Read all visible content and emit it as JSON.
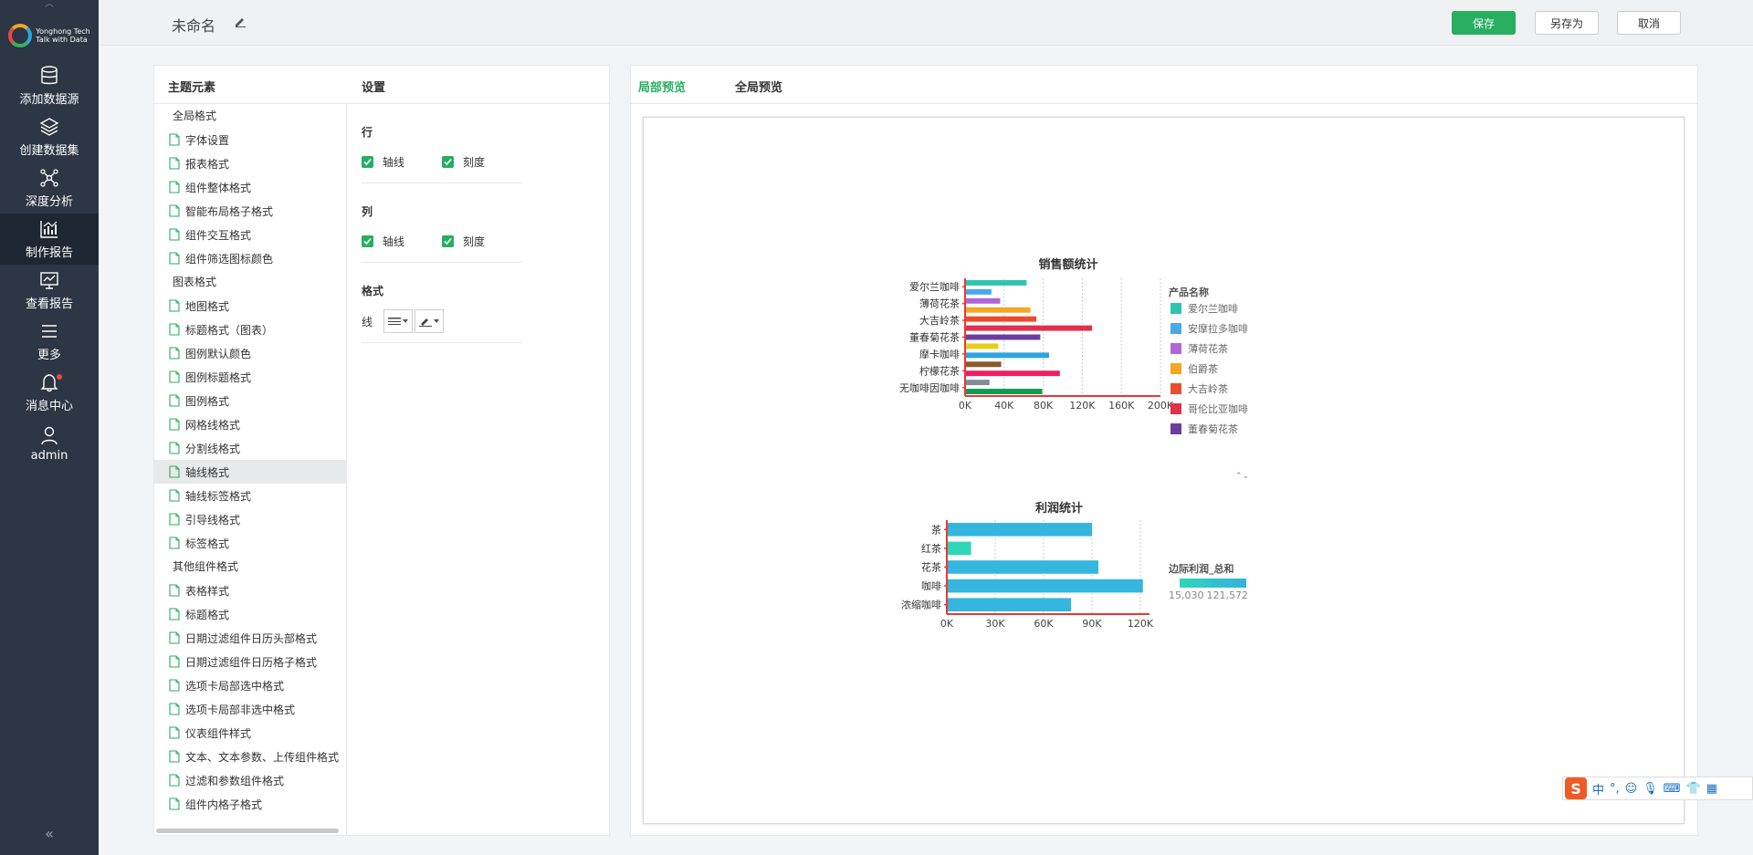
{
  "app": {
    "logo_line1": "Yonghong Tech",
    "logo_line2": "Talk with Data"
  },
  "nav": {
    "items": [
      {
        "label": "添加数据源",
        "icon": "database-icon"
      },
      {
        "label": "创建数据集",
        "icon": "layers-icon"
      },
      {
        "label": "深度分析",
        "icon": "network-icon"
      },
      {
        "label": "制作报告",
        "icon": "chart-icon",
        "active": true
      },
      {
        "label": "查看报告",
        "icon": "monitor-chart-icon"
      },
      {
        "label": "更多",
        "icon": "menu-icon"
      },
      {
        "label": "消息中心",
        "icon": "bell-icon"
      },
      {
        "label": "admin",
        "icon": "user-icon"
      }
    ],
    "collapse": "«"
  },
  "topbar": {
    "title": "未命名",
    "save": "保存",
    "save_as": "另存为",
    "cancel": "取消"
  },
  "panel": {
    "theme_header": "主题元素",
    "settings_header": "设置",
    "tree": [
      {
        "type": "group",
        "label": "全局格式"
      },
      {
        "type": "item",
        "label": "字体设置"
      },
      {
        "type": "item",
        "label": "报表格式"
      },
      {
        "type": "item",
        "label": "组件整体格式"
      },
      {
        "type": "item",
        "label": "智能布局格子格式"
      },
      {
        "type": "item",
        "label": "组件交互格式"
      },
      {
        "type": "item",
        "label": "组件筛选图标颜色"
      },
      {
        "type": "group",
        "label": "图表格式"
      },
      {
        "type": "item",
        "label": "地图格式"
      },
      {
        "type": "item",
        "label": "标题格式（图表）"
      },
      {
        "type": "item",
        "label": "图例默认颜色"
      },
      {
        "type": "item",
        "label": "图例标题格式"
      },
      {
        "type": "item",
        "label": "图例格式"
      },
      {
        "type": "item",
        "label": "网格线格式"
      },
      {
        "type": "item",
        "label": "分割线格式"
      },
      {
        "type": "item",
        "label": "轴线格式",
        "selected": true
      },
      {
        "type": "item",
        "label": "轴线标签格式"
      },
      {
        "type": "item",
        "label": "引导线格式"
      },
      {
        "type": "item",
        "label": "标签格式"
      },
      {
        "type": "group",
        "label": "其他组件格式"
      },
      {
        "type": "item",
        "label": "表格样式"
      },
      {
        "type": "item",
        "label": "标题格式"
      },
      {
        "type": "item",
        "label": "日期过滤组件日历头部格式"
      },
      {
        "type": "item",
        "label": "日期过滤组件日历格子格式"
      },
      {
        "type": "item",
        "label": "选项卡局部选中格式"
      },
      {
        "type": "item",
        "label": "选项卡局部非选中格式"
      },
      {
        "type": "item",
        "label": "仪表组件样式"
      },
      {
        "type": "item",
        "label": "文本、文本参数、上传组件格式"
      },
      {
        "type": "item",
        "label": "过滤和参数组件格式"
      },
      {
        "type": "item",
        "label": "组件内格子格式"
      }
    ],
    "settings": {
      "row_title": "行",
      "col_title": "列",
      "format_title": "格式",
      "axis_line": "轴线",
      "tick": "刻度",
      "line_label": "线"
    }
  },
  "preview": {
    "tab_local": "局部预览",
    "tab_global": "全局预览"
  },
  "chart_data": [
    {
      "type": "bar",
      "orientation": "horizontal",
      "title": "销售额统计",
      "categories": [
        "爱尔兰咖啡",
        "薄荷花茶",
        "大吉岭茶",
        "董春菊花茶",
        "摩卡咖啡",
        "柠檬花茶",
        "无咖啡因咖啡"
      ],
      "bars": [
        {
          "value": 63000,
          "color": "#2fc4b2"
        },
        {
          "value": 27000,
          "color": "#4aa8e8"
        },
        {
          "value": 36000,
          "color": "#b066d6"
        },
        {
          "value": 67000,
          "color": "#f5a623"
        },
        {
          "value": 73000,
          "color": "#e94e2c"
        },
        {
          "value": 130000,
          "color": "#e0304e"
        },
        {
          "value": 77000,
          "color": "#6a3ea0"
        },
        {
          "value": 34000,
          "color": "#e6cf1a"
        },
        {
          "value": 86000,
          "color": "#2ea3e0"
        },
        {
          "value": 37000,
          "color": "#8b5a2b"
        },
        {
          "value": 97000,
          "color": "#e91e63"
        },
        {
          "value": 25000,
          "color": "#7f8c9a"
        },
        {
          "value": 79000,
          "color": "#0f9a55"
        }
      ],
      "x_ticks": [
        "0K",
        "40K",
        "80K",
        "120K",
        "160K",
        "200K"
      ],
      "xlim": [
        0,
        200000
      ],
      "legend": {
        "title": "产品名称",
        "position": "right",
        "entries": [
          {
            "label": "爱尔兰咖啡",
            "color": "#2fc4b2"
          },
          {
            "label": "安摩拉多咖啡",
            "color": "#4aa8e8"
          },
          {
            "label": "薄荷花茶",
            "color": "#b066d6"
          },
          {
            "label": "伯爵茶",
            "color": "#f5a623"
          },
          {
            "label": "大吉岭茶",
            "color": "#e94e2c"
          },
          {
            "label": "哥伦比亚咖啡",
            "color": "#e0304e"
          },
          {
            "label": "董春菊花茶",
            "color": "#6a3ea0"
          }
        ]
      }
    },
    {
      "type": "bar",
      "orientation": "horizontal",
      "title": "利润统计",
      "categories": [
        "茶",
        "红茶",
        "花茶",
        "咖啡",
        "浓缩咖啡"
      ],
      "values": [
        90000,
        15030,
        94000,
        121572,
        77000
      ],
      "x_ticks": [
        "0K",
        "30K",
        "60K",
        "90K",
        "120K"
      ],
      "xlim": [
        0,
        121572
      ],
      "legend": {
        "title": "边际利润_总和",
        "position": "right",
        "min_label": "15,030",
        "max_label": "121,572"
      }
    }
  ],
  "ime": {
    "logo": "S",
    "lang": "中",
    "punct": "°,"
  }
}
